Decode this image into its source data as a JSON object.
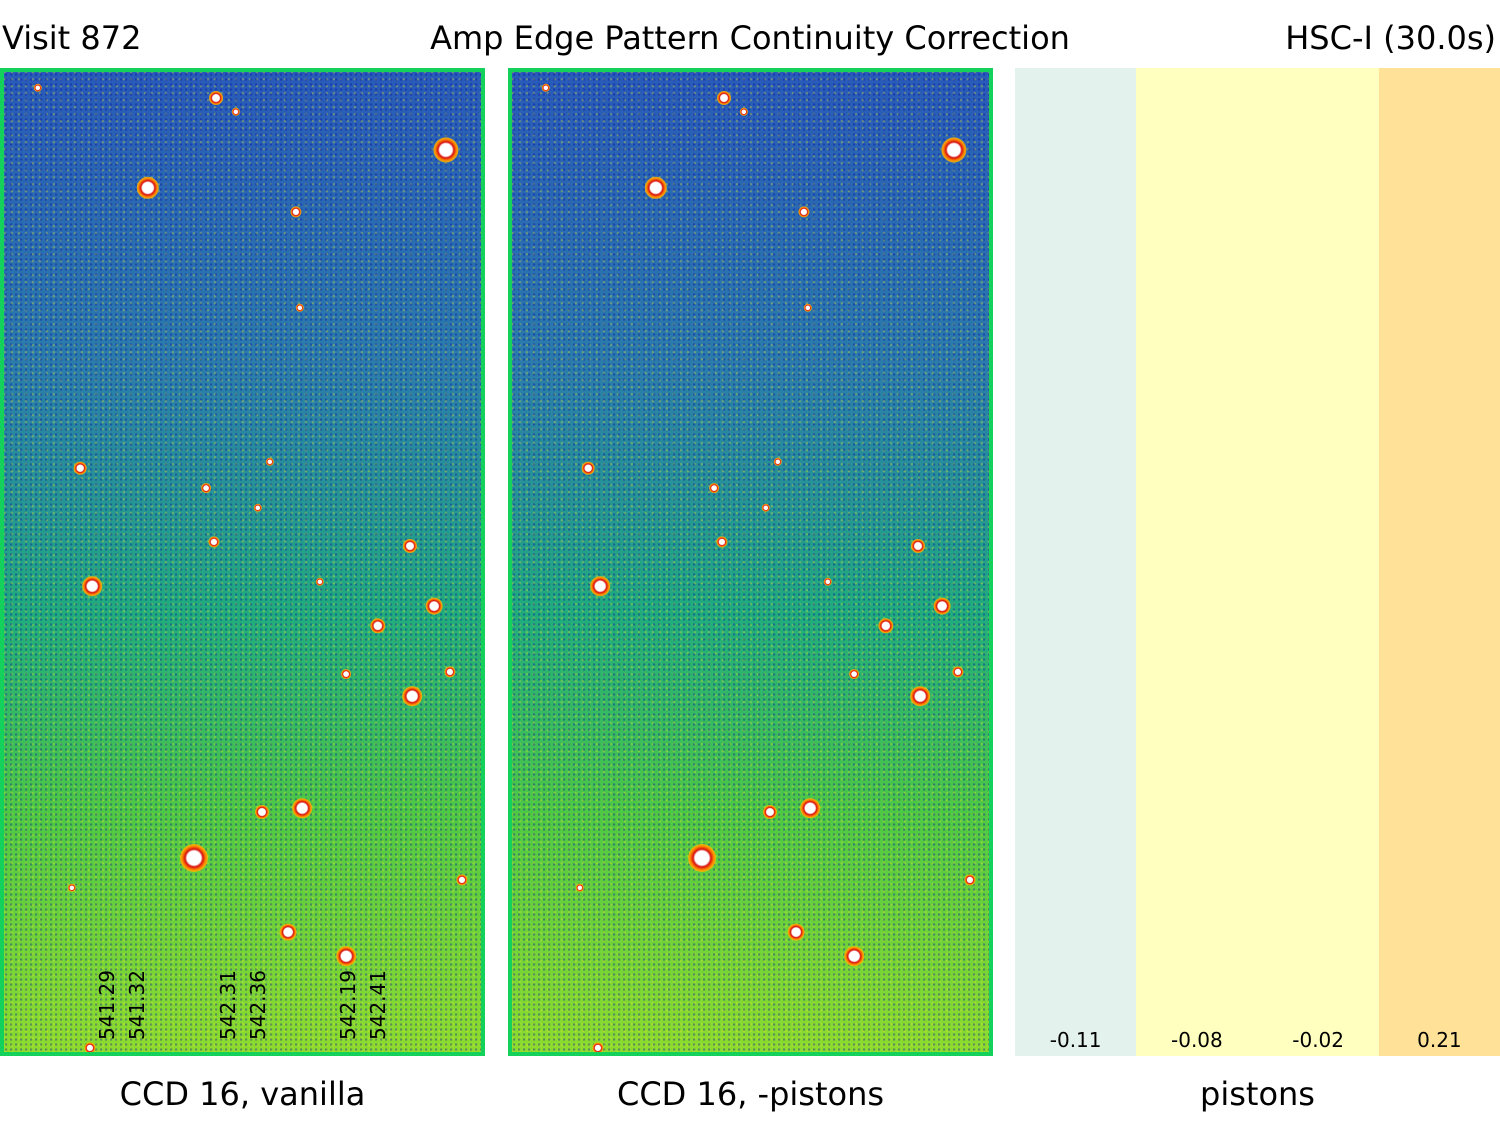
{
  "header": {
    "visit": "Visit 872",
    "title": "Amp Edge Pattern Continuity Correction",
    "filter": "HSC-I (30.0s)"
  },
  "panels": {
    "vanilla_caption": "CCD 16, vanilla",
    "pistons_caption": "CCD 16, -pistons",
    "piston_caption": "pistons"
  },
  "amp_edge_labels": [
    "541.29",
    "541.32",
    "542.31",
    "542.36",
    "542.19",
    "542.41"
  ],
  "pistons": [
    {
      "value": "-0.11",
      "color": "#e3f2ec"
    },
    {
      "value": "-0.08",
      "color": "#ffffc0"
    },
    {
      "value": "-0.02",
      "color": "#ffffc0"
    },
    {
      "value": "0.21",
      "color": "#ffe298"
    }
  ]
}
